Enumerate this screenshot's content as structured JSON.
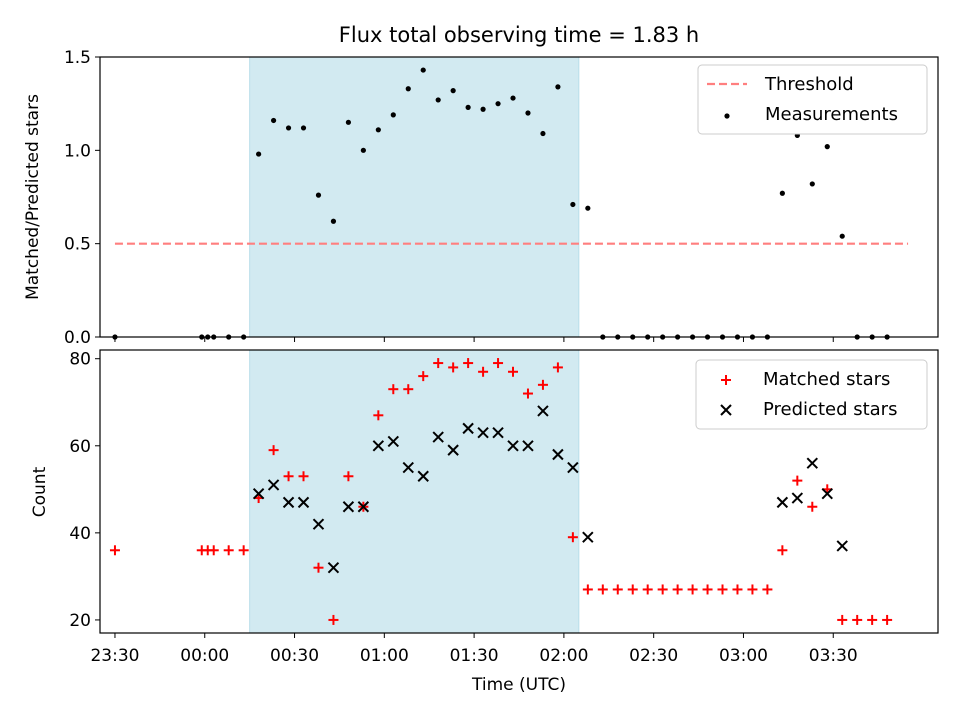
{
  "chart_data": [
    {
      "type": "scatter",
      "panel": "top",
      "title": "Flux total observing time = 1.83 h",
      "xlabel": "",
      "ylabel": "Matched/Predicted stars",
      "ylim": [
        0,
        1.5
      ],
      "yticks": [
        "0.0",
        "0.5",
        "1.0",
        "1.5"
      ],
      "xlim_minutes": [
        -35,
        245
      ],
      "shaded_interval_minutes": [
        15,
        125
      ],
      "shaded_color": "#add8e6",
      "threshold": {
        "name": "Threshold",
        "value": 0.5,
        "x_range_minutes": [
          -30,
          235
        ],
        "color": "#ff7f7f",
        "style": "dashed"
      },
      "series": [
        {
          "name": "Measurements",
          "color": "#000000",
          "marker": "dot",
          "points": [
            [
              -30,
              0
            ],
            [
              -1,
              0
            ],
            [
              1,
              0
            ],
            [
              3,
              0
            ],
            [
              8,
              0
            ],
            [
              13,
              0
            ],
            [
              18,
              0.98
            ],
            [
              23,
              1.16
            ],
            [
              28,
              1.12
            ],
            [
              33,
              1.12
            ],
            [
              38,
              0.76
            ],
            [
              43,
              0.62
            ],
            [
              48,
              1.15
            ],
            [
              53,
              1.0
            ],
            [
              58,
              1.11
            ],
            [
              63,
              1.19
            ],
            [
              68,
              1.33
            ],
            [
              73,
              1.43
            ],
            [
              78,
              1.27
            ],
            [
              83,
              1.32
            ],
            [
              88,
              1.23
            ],
            [
              93,
              1.22
            ],
            [
              98,
              1.25
            ],
            [
              103,
              1.28
            ],
            [
              108,
              1.2
            ],
            [
              113,
              1.09
            ],
            [
              118,
              1.34
            ],
            [
              123,
              0.71
            ],
            [
              128,
              0.69
            ],
            [
              133,
              0
            ],
            [
              138,
              0
            ],
            [
              143,
              0
            ],
            [
              148,
              0
            ],
            [
              153,
              0
            ],
            [
              158,
              0
            ],
            [
              163,
              0
            ],
            [
              168,
              0
            ],
            [
              173,
              0
            ],
            [
              178,
              0
            ],
            [
              183,
              0
            ],
            [
              188,
              0
            ],
            [
              193,
              0.77
            ],
            [
              198,
              1.08
            ],
            [
              203,
              0.82
            ],
            [
              208,
              1.02
            ],
            [
              213,
              0.54
            ],
            [
              218,
              0
            ],
            [
              223,
              0
            ],
            [
              228,
              0
            ]
          ]
        }
      ],
      "legend": {
        "position": "top-right",
        "entries": [
          "Threshold",
          "Measurements"
        ]
      }
    },
    {
      "type": "scatter",
      "panel": "bottom",
      "title": "",
      "xlabel": "Time (UTC)",
      "ylabel": "Count",
      "ylim": [
        17,
        82
      ],
      "yticks": [
        "20",
        "40",
        "60",
        "80"
      ],
      "xlim_minutes": [
        -35,
        245
      ],
      "x_origin_label": "00:00",
      "xticks": [
        {
          "minutes": -30,
          "label": "23:30"
        },
        {
          "minutes": 0,
          "label": "00:00"
        },
        {
          "minutes": 30,
          "label": "00:30"
        },
        {
          "minutes": 60,
          "label": "01:00"
        },
        {
          "minutes": 90,
          "label": "01:30"
        },
        {
          "minutes": 120,
          "label": "02:00"
        },
        {
          "minutes": 150,
          "label": "02:30"
        },
        {
          "minutes": 180,
          "label": "03:00"
        },
        {
          "minutes": 210,
          "label": "03:30"
        }
      ],
      "shaded_interval_minutes": [
        15,
        125
      ],
      "shaded_color": "#add8e6",
      "series": [
        {
          "name": "Matched stars",
          "color": "#ff0000",
          "marker": "plus",
          "points": [
            [
              -30,
              36
            ],
            [
              -1,
              36
            ],
            [
              1,
              36
            ],
            [
              3,
              36
            ],
            [
              8,
              36
            ],
            [
              13,
              36
            ],
            [
              18,
              48
            ],
            [
              23,
              59
            ],
            [
              28,
              53
            ],
            [
              33,
              53
            ],
            [
              38,
              32
            ],
            [
              43,
              20
            ],
            [
              48,
              53
            ],
            [
              53,
              46
            ],
            [
              58,
              67
            ],
            [
              63,
              73
            ],
            [
              68,
              73
            ],
            [
              73,
              76
            ],
            [
              78,
              79
            ],
            [
              83,
              78
            ],
            [
              88,
              79
            ],
            [
              93,
              77
            ],
            [
              98,
              79
            ],
            [
              103,
              77
            ],
            [
              108,
              72
            ],
            [
              113,
              74
            ],
            [
              118,
              78
            ],
            [
              123,
              39
            ],
            [
              128,
              27
            ],
            [
              133,
              27
            ],
            [
              138,
              27
            ],
            [
              143,
              27
            ],
            [
              148,
              27
            ],
            [
              153,
              27
            ],
            [
              158,
              27
            ],
            [
              163,
              27
            ],
            [
              168,
              27
            ],
            [
              173,
              27
            ],
            [
              178,
              27
            ],
            [
              183,
              27
            ],
            [
              188,
              27
            ],
            [
              193,
              36
            ],
            [
              198,
              52
            ],
            [
              203,
              46
            ],
            [
              208,
              50
            ],
            [
              213,
              20
            ],
            [
              218,
              20
            ],
            [
              223,
              20
            ],
            [
              228,
              20
            ]
          ]
        },
        {
          "name": "Predicted stars",
          "color": "#000000",
          "marker": "x",
          "points": [
            [
              18,
              49
            ],
            [
              23,
              51
            ],
            [
              28,
              47
            ],
            [
              33,
              47
            ],
            [
              38,
              42
            ],
            [
              43,
              32
            ],
            [
              48,
              46
            ],
            [
              53,
              46
            ],
            [
              58,
              60
            ],
            [
              63,
              61
            ],
            [
              68,
              55
            ],
            [
              73,
              53
            ],
            [
              78,
              62
            ],
            [
              83,
              59
            ],
            [
              88,
              64
            ],
            [
              93,
              63
            ],
            [
              98,
              63
            ],
            [
              103,
              60
            ],
            [
              108,
              60
            ],
            [
              113,
              68
            ],
            [
              118,
              58
            ],
            [
              123,
              55
            ],
            [
              128,
              39
            ],
            [
              193,
              47
            ],
            [
              198,
              48
            ],
            [
              203,
              56
            ],
            [
              208,
              49
            ],
            [
              213,
              37
            ]
          ]
        }
      ],
      "legend": {
        "position": "top-right",
        "entries": [
          "Matched stars",
          "Predicted stars"
        ]
      }
    }
  ]
}
